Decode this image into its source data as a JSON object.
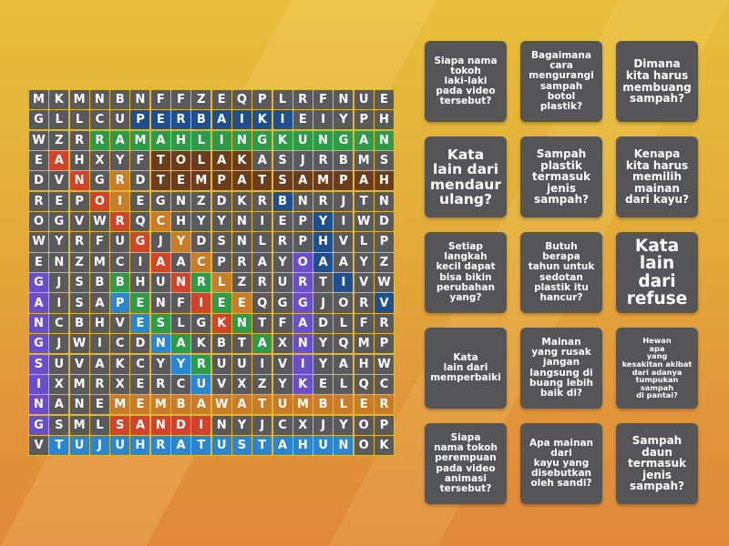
{
  "puzzle": {
    "type": "wordsearch",
    "rows": 18,
    "cols": 18,
    "grid": [
      "MKMNBNFFZEQPLRFNUE",
      "GLLCUPERBAIKIEIYPH",
      "WZRRAMAHLINGKUNGAN",
      "EAHXYFTOLAKASJRBMS",
      "DVNGRDTEMPATSAMPAH",
      "REPOIEGNZDKRBNRJTN",
      "OGVWRQCHYYNIEPYIWD",
      "WYRFUGJYDSNLRPHVLP",
      "ENZMCIAACPRAYOAAYZ",
      "GJSBBHUNRLZRURTIVW",
      "AISAPENFIEEQGGJORV",
      "NCBHVESLGKNTFADLFR",
      "GJWICDNAKBTAXNYQMP",
      "SUVAKCYYRUUIVIYAHW",
      "IXMRXERCUVXZYKELQC",
      "NANEMEMBAWATUMBLER",
      "GSMLSANDINYJCXJYOP",
      "VTUJUHRATUSTAHUNOK"
    ],
    "highlight_map": [
      "gggggggggggggggggg",
      "gggggBBBBBBBBggggg",
      "gggGGGGGGGGGGGGGGG",
      "gRggggNNNNNggggggg",
      "ggRgOgNNNNNNNNNNNN",
      "gggROgggggggBggggg",
      "ggggRgOgggggggBggg",
      "gggggRgOggggggBggg",
      "ggggggRgOggggPBggg",
      "PgggGggRGOgggPgBgg",
      "PgggLGggRGOggPgggB",
      "PggggLGggRGggPgggg",
      "PgggggLGgggGgPgggg",
      "PggggggLGggggPgggg",
      "PgggggggLggggPgggg",
      "PgggOOOOOOOOOOOOOO",
      "PgggRRRRRggggggggg",
      "gLLLLLLLLLLLLLLLgg"
    ],
    "colors": {
      "g": "#5a5a5c",
      "B": "#1f4f8c",
      "G": "#2f9a48",
      "R": "#d0452a",
      "N": "#6b3d1c",
      "O": "#c97d28",
      "P": "#6a4fc9",
      "L": "#2a86cf"
    },
    "found_words": [
      "PERBAIKI",
      "RAMAHLINGKUNGAN",
      "TOLAK",
      "TEMPATSAMPAH",
      "ANORGANIK",
      "RECYCLE",
      "REPAIR",
      "ORGANIK",
      "GANGSING",
      "BESAR",
      "RENA",
      "PENYU",
      "MEMBAWATUMBLER",
      "SANDI",
      "TUJUHRATUSTAHUN"
    ]
  },
  "clues": [
    {
      "text": "Siapa nama\ntokoh\nlaki-laki\npada video\ntersebut?",
      "size": "s"
    },
    {
      "text": "Bagaimana\ncara\nmengurangi\nsampah\nbotol\nplastik?",
      "size": "s"
    },
    {
      "text": "Dimana\nkita harus\nmembuang\nsampah?",
      "size": "m"
    },
    {
      "text": "Kata\nlain dari\nmendaur\nulang?",
      "size": "l"
    },
    {
      "text": "Sampah\nplastik\ntermasuk\njenis\nsampah?",
      "size": "m"
    },
    {
      "text": "Kenapa\nkita harus\nmemilih\nmainan\ndari kayu?",
      "size": "m"
    },
    {
      "text": "Setiap\nlangkah\nkecil dapat\nbisa bikin\nperubahan\nyang?",
      "size": "s"
    },
    {
      "text": "Butuh\nberapa\ntahun untuk\nsedotan\nplastik itu\nhancur?",
      "size": "s"
    },
    {
      "text": "Kata\nlain dari\nrefuse",
      "size": "xl"
    },
    {
      "text": "Kata\nlain dari\nmemperbaiki",
      "size": "s"
    },
    {
      "text": "Mainan\nyang rusak\njangan\nlangsung di\nbuang lebih\nbaik di?",
      "size": "s"
    },
    {
      "text": "Hewan\napa\nyang\nkesakitan akibat\ndari adanya\ntumpukan\nsampah\ndi pantai?",
      "size": "xs"
    },
    {
      "text": "Siapa\nnama tokoh\nperempuan\npada video\nanimasi\ntersebut?",
      "size": "s"
    },
    {
      "text": "Apa mainan\ndari\nkayu yang\ndisebutkan\noleh sandi?",
      "size": "s"
    },
    {
      "text": "Sampah\ndaun\ntermasuk\njenis\nsampah?",
      "size": "m"
    }
  ]
}
